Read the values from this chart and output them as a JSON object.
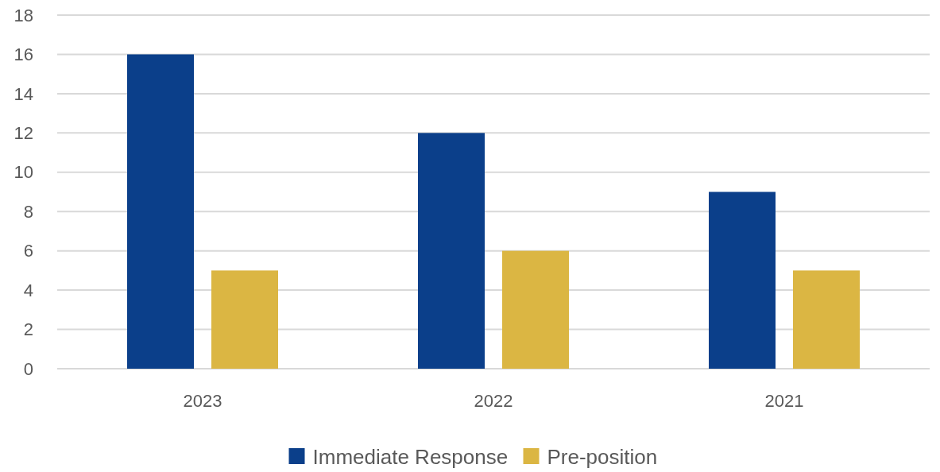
{
  "chart_data": {
    "type": "bar",
    "categories": [
      "2023",
      "2022",
      "2021"
    ],
    "series": [
      {
        "name": "Immediate Response",
        "color": "#0b3f8a",
        "values": [
          16,
          12,
          9
        ]
      },
      {
        "name": "Pre-position",
        "color": "#dbb643",
        "values": [
          5,
          6,
          5
        ]
      }
    ],
    "ylim": [
      0,
      18
    ],
    "yticks": [
      0,
      2,
      4,
      6,
      8,
      10,
      12,
      14,
      16,
      18
    ],
    "grid": "y",
    "legend": "bottom"
  }
}
